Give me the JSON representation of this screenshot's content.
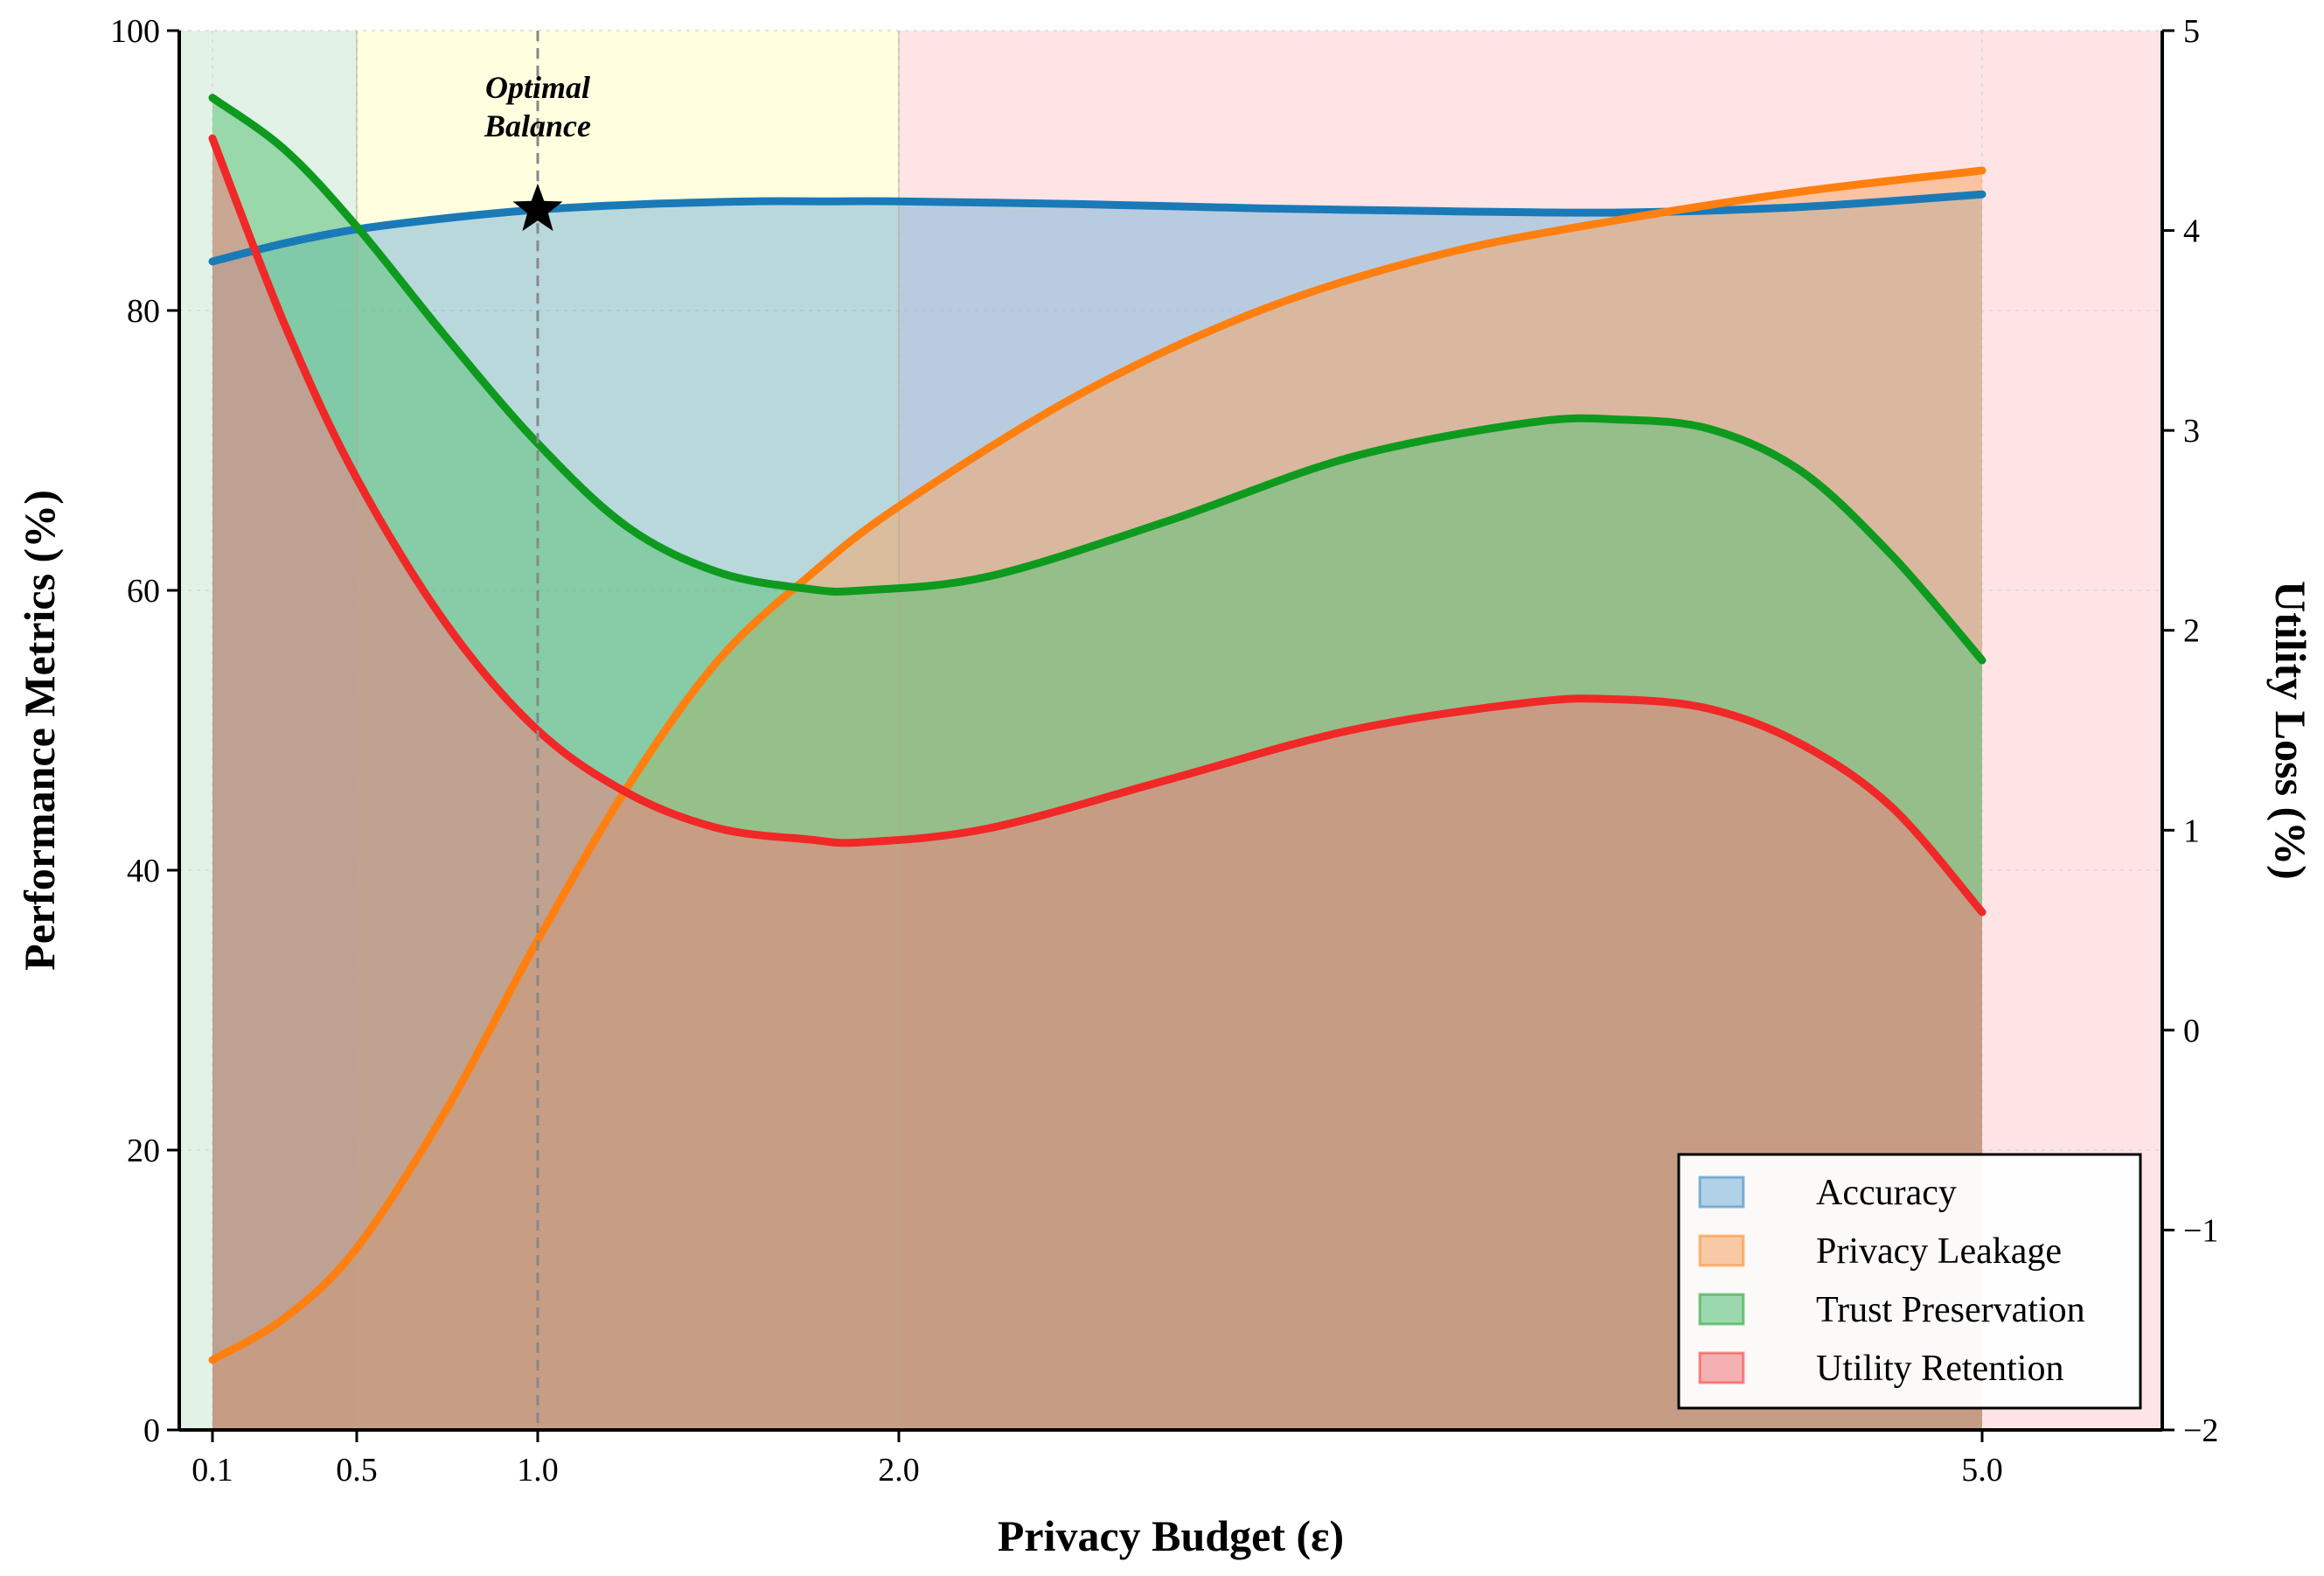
{
  "chart_data": {
    "type": "area",
    "title": "",
    "xlabel": "Privacy Budget (ε)",
    "ylabel": "Performance Metrics (%)",
    "y2label": "Utility Loss (%)",
    "x_ticks": [
      0.1,
      0.5,
      1.0,
      2.0,
      5.0
    ],
    "x_tick_labels": [
      "0.1",
      "0.5",
      "1.0",
      "2.0",
      "5.0"
    ],
    "xlim": [
      0.0,
      5.5
    ],
    "ylim": [
      0,
      100
    ],
    "y_ticks": [
      0,
      20,
      40,
      60,
      80,
      100
    ],
    "y2lim": [
      -2,
      5
    ],
    "y2_ticks": [
      -2,
      -1,
      0,
      1,
      2,
      3,
      4,
      5
    ],
    "y2_tick_labels": [
      "−2",
      "−1",
      "0",
      "1",
      "2",
      "3",
      "4",
      "5"
    ],
    "grid": true,
    "legend_position": "bottom-right",
    "regions": [
      {
        "x_start": 0.0,
        "x_end": 0.5,
        "color": "#e2f2e6"
      },
      {
        "x_start": 0.5,
        "x_end": 2.0,
        "color": "#ffffe0"
      },
      {
        "x_start": 2.0,
        "x_end": 5.5,
        "color": "#ffe4e6"
      }
    ],
    "series": [
      {
        "name": "Accuracy",
        "color": "#1a7ab8",
        "fill": "#7fb8d8",
        "x": [
          0.1,
          0.3,
          0.5,
          0.75,
          1.0,
          1.3,
          1.6,
          1.8,
          2.0,
          2.5,
          3.0,
          3.5,
          4.0,
          4.5,
          5.0
        ],
        "values": [
          83.5,
          84.8,
          85.8,
          86.6,
          87.2,
          87.6,
          87.8,
          87.8,
          87.8,
          87.6,
          87.3,
          87.1,
          87.0,
          87.4,
          88.3
        ]
      },
      {
        "name": "Privacy Leakage",
        "color": "#ff8010",
        "fill": "#f5a86a",
        "x": [
          0.1,
          0.3,
          0.5,
          0.75,
          1.0,
          1.25,
          1.5,
          1.75,
          2.0,
          2.5,
          3.0,
          3.5,
          4.0,
          4.5,
          5.0
        ],
        "values": [
          5,
          8,
          13,
          23,
          35,
          46,
          55,
          61,
          66,
          74,
          80,
          84,
          86.5,
          88.5,
          90
        ]
      },
      {
        "name": "Trust Preservation",
        "color": "#0e9a1e",
        "fill": "#5cc27a",
        "x": [
          0.1,
          0.3,
          0.5,
          0.75,
          1.0,
          1.25,
          1.5,
          1.75,
          1.9,
          2.25,
          2.75,
          3.25,
          3.75,
          4.0,
          4.25,
          4.5,
          4.75,
          5.0
        ],
        "values": [
          95.2,
          91.5,
          86,
          78,
          70.5,
          64.5,
          61.3,
          60.1,
          60,
          61,
          65,
          69.5,
          72,
          72.2,
          71.5,
          68.5,
          62.5,
          55
        ]
      },
      {
        "name": "Utility Retention",
        "color": "#f02828",
        "fill": "#f08080",
        "x": [
          0.1,
          0.3,
          0.5,
          0.75,
          1.0,
          1.25,
          1.5,
          1.75,
          1.9,
          2.25,
          2.75,
          3.25,
          3.75,
          4.0,
          4.25,
          4.5,
          4.75,
          5.0
        ],
        "values": [
          92.3,
          79,
          68,
          57.5,
          50,
          45.5,
          43,
          42.2,
          42,
          43,
          46.5,
          50,
          52,
          52.2,
          51.5,
          49,
          44.5,
          37
        ]
      }
    ],
    "annotations": [
      {
        "text_lines": [
          "Optimal",
          "Balance"
        ],
        "x": 1.0,
        "y": 87.2,
        "marker": "star",
        "vline": true
      }
    ]
  }
}
